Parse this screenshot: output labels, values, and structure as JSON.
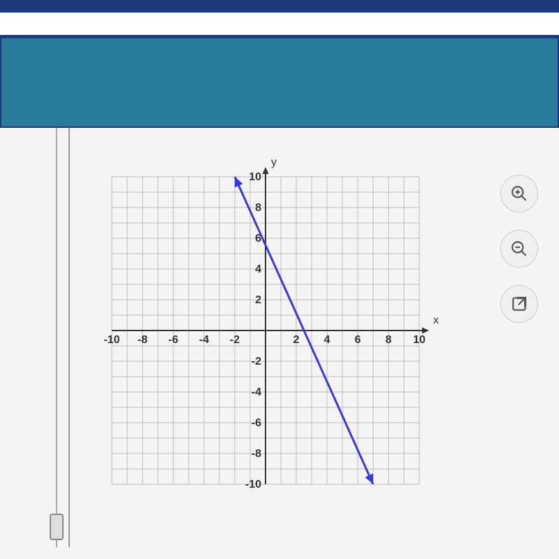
{
  "chart": {
    "type": "line",
    "xlabel": "x",
    "ylabel": "y",
    "xlim": [
      -10,
      10
    ],
    "ylim": [
      -10,
      10
    ],
    "xtick_step": 2,
    "ytick_step": 2,
    "x_tick_labels": [
      "-10",
      "-8",
      "-6",
      "-4",
      "-2",
      "2",
      "4",
      "6",
      "8",
      "10"
    ],
    "y_tick_labels": [
      "-10",
      "-8",
      "-6",
      "-4",
      "-2",
      "2",
      "4",
      "6",
      "8",
      "10"
    ],
    "grid_color": "#bbbbbb",
    "axis_color": "#333333",
    "background_color": "#ffffff",
    "label_fontsize": 16,
    "line": {
      "color": "#3838e6",
      "width": 3,
      "points": [
        [
          -2,
          10
        ],
        [
          7,
          -10
        ]
      ],
      "arrows": "both"
    }
  },
  "controls": {
    "zoom_in": "zoom-in",
    "zoom_out": "zoom-out",
    "expand": "open-external"
  },
  "bars": {
    "navy_color": "#1d3a7c",
    "teal_color": "#2a7a9a"
  }
}
